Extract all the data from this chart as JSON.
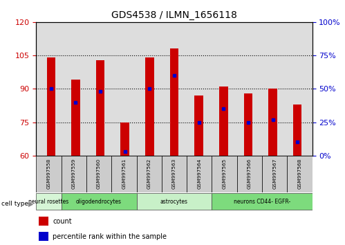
{
  "title": "GDS4538 / ILMN_1656118",
  "samples": [
    "GSM997558",
    "GSM997559",
    "GSM997560",
    "GSM997561",
    "GSM997562",
    "GSM997563",
    "GSM997564",
    "GSM997565",
    "GSM997566",
    "GSM997567",
    "GSM997568"
  ],
  "counts": [
    104,
    94,
    103,
    75,
    104,
    108,
    87,
    91,
    88,
    90,
    83
  ],
  "percentile_rank": [
    50,
    40,
    48,
    3,
    50,
    60,
    25,
    35,
    25,
    27,
    10
  ],
  "ylim_left": [
    60,
    120
  ],
  "ylim_right": [
    0,
    100
  ],
  "yticks_left": [
    60,
    75,
    90,
    105,
    120
  ],
  "yticks_right": [
    0,
    25,
    50,
    75,
    100
  ],
  "cell_types": [
    {
      "label": "neural rosettes",
      "start": 0,
      "end": 0,
      "color": "#d6f5d6"
    },
    {
      "label": "oligodendrocytes",
      "start": 1,
      "end": 3,
      "color": "#7ddb7d"
    },
    {
      "label": "astrocytes",
      "start": 4,
      "end": 6,
      "color": "#c8f0c8"
    },
    {
      "label": "neurons CD44- EGFR-",
      "start": 7,
      "end": 10,
      "color": "#7ddb7d"
    }
  ],
  "bar_color": "#cc0000",
  "dot_color": "#0000cc",
  "bar_width": 0.35,
  "grid_color": "#000000",
  "bg_color": "#ffffff",
  "axis_bg": "#dddddd",
  "tick_color_left": "#cc0000",
  "tick_color_right": "#0000cc"
}
